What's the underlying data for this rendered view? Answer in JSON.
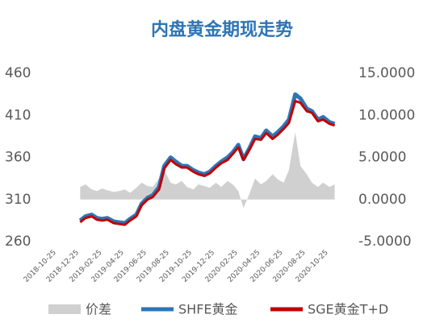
{
  "chart_data": {
    "type": "line",
    "title": "内盘黄金期现走势",
    "x": [
      "2019-01-01",
      "2019-01-15",
      "2019-02-01",
      "2019-02-15",
      "2019-03-01",
      "2019-03-15",
      "2019-04-01",
      "2019-04-15",
      "2019-05-01",
      "2019-05-15",
      "2019-06-01",
      "2019-06-15",
      "2019-07-01",
      "2019-07-15",
      "2019-08-01",
      "2019-08-15",
      "2019-09-01",
      "2019-09-15",
      "2019-10-01",
      "2019-10-15",
      "2019-11-01",
      "2019-11-15",
      "2019-12-01",
      "2019-12-15",
      "2020-01-01",
      "2020-01-15",
      "2020-02-01",
      "2020-02-15",
      "2020-03-01",
      "2020-03-15",
      "2020-04-01",
      "2020-04-15",
      "2020-05-01",
      "2020-05-15",
      "2020-06-01",
      "2020-06-15",
      "2020-07-01",
      "2020-07-15",
      "2020-08-01",
      "2020-08-15",
      "2020-09-01",
      "2020-09-15",
      "2020-10-01",
      "2020-10-15",
      "2020-11-01",
      "2020-11-15"
    ],
    "series": [
      {
        "name": "价差",
        "color": "#d0d0d0",
        "axis": "y2",
        "kind": "area",
        "values": [
          1.5,
          1.8,
          1.2,
          1.0,
          1.3,
          1.1,
          0.9,
          1.0,
          1.2,
          0.8,
          1.4,
          2.0,
          1.6,
          1.5,
          2.5,
          3.5,
          2.0,
          1.8,
          2.2,
          1.5,
          1.2,
          1.8,
          1.6,
          1.4,
          2.0,
          1.5,
          2.2,
          1.8,
          1.0,
          -1.0,
          0.8,
          2.5,
          1.8,
          2.2,
          3.0,
          2.4,
          2.0,
          3.5,
          8.0,
          4.0,
          3.0,
          2.0,
          1.5,
          2.0,
          1.5,
          1.8
        ]
      },
      {
        "name": "SHFE黄金",
        "color": "#2e75b6",
        "values": [
          285,
          290,
          292,
          288,
          287,
          288,
          284,
          283,
          282,
          287,
          292,
          305,
          312,
          315,
          325,
          350,
          360,
          355,
          350,
          350,
          345,
          342,
          340,
          343,
          350,
          355,
          360,
          366,
          375,
          358,
          372,
          385,
          383,
          392,
          385,
          390,
          397,
          405,
          435,
          430,
          418,
          415,
          405,
          408,
          402,
          400
        ]
      },
      {
        "name": "SGE黄金T+D",
        "color": "#c00000",
        "values": [
          283,
          288,
          290,
          286,
          285,
          286,
          282,
          281,
          280,
          285,
          290,
          303,
          310,
          313,
          322,
          347,
          357,
          352,
          348,
          348,
          343,
          340,
          338,
          341,
          348,
          353,
          357,
          364,
          372,
          357,
          370,
          382,
          381,
          389,
          382,
          387,
          394,
          401,
          427,
          425,
          415,
          413,
          403,
          405,
          400,
          398
        ]
      }
    ],
    "xlim": [
      "2018-10-25",
      "2020-12-25"
    ],
    "xticks": [
      "2018-10-25",
      "2018-12-25",
      "2019-02-25",
      "2019-04-25",
      "2019-06-25",
      "2019-08-25",
      "2019-10-25",
      "2019-12-25",
      "2020-02-25",
      "2020-04-25",
      "2020-06-25",
      "2020-08-25",
      "2020-10-25"
    ],
    "ylim": [
      260,
      460
    ],
    "yticks": [
      260,
      310,
      360,
      410,
      460
    ],
    "y2lim": [
      -5,
      15
    ],
    "y2ticks": [
      {
        "value": -5,
        "label": "-5.0000"
      },
      {
        "value": 0,
        "label": "0.0000"
      },
      {
        "value": 5,
        "label": "5.0000"
      },
      {
        "value": 10,
        "label": "10.0000"
      },
      {
        "value": 15,
        "label": "15.0000"
      }
    ]
  }
}
